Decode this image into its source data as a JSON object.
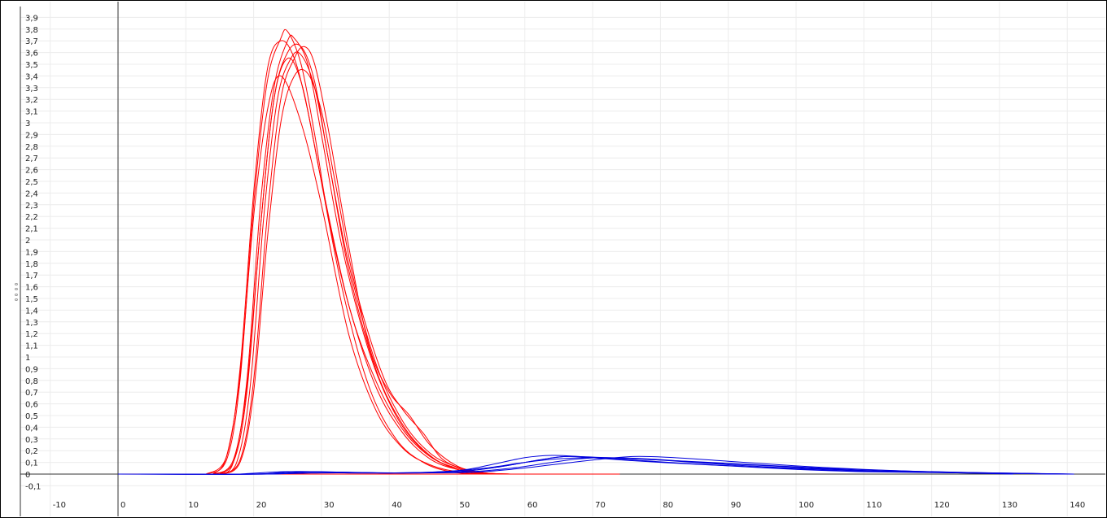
{
  "chart_data": {
    "type": "line",
    "title": "",
    "xlabel": "",
    "ylabel": "",
    "xlim": [
      -15,
      143
    ],
    "ylim": [
      -0.2,
      3.95
    ],
    "grid": true,
    "x_ticks": [
      -10,
      0,
      10,
      20,
      30,
      40,
      50,
      60,
      70,
      80,
      90,
      100,
      110,
      120,
      130,
      140
    ],
    "x_tick_labels": [
      "-10",
      "0",
      "10",
      "20",
      "30",
      "40",
      "50",
      "60",
      "70",
      "80",
      "90",
      "100",
      "110",
      "120",
      "130",
      "140"
    ],
    "y_ticks": [
      -0.1,
      0,
      0.1,
      0.2,
      0.3,
      0.4,
      0.5,
      0.6,
      0.7,
      0.8,
      0.9,
      1,
      1.1,
      1.2,
      1.3,
      1.4,
      1.5,
      1.6,
      1.7,
      1.8,
      1.9,
      2,
      2.1,
      2.2,
      2.3,
      2.4,
      2.5,
      2.6,
      2.7,
      2.8,
      2.9,
      3,
      3.1,
      3.2,
      3.3,
      3.4,
      3.5,
      3.6,
      3.7,
      3.8,
      3.9
    ],
    "y_tick_labels": [
      "-0,1",
      "0",
      "0,1",
      "0,2",
      "0,3",
      "0,4",
      "0,5",
      "0,6",
      "0,7",
      "0,8",
      "0,9",
      "1",
      "1,1",
      "1,2",
      "1,3",
      "1,4",
      "1,5",
      "1,6",
      "1,7",
      "1,8",
      "1,9",
      "2",
      "2,1",
      "2,2",
      "2,3",
      "2,4",
      "2,5",
      "2,6",
      "2,7",
      "2,8",
      "2,9",
      "3",
      "3,1",
      "3,2",
      "3,3",
      "3,4",
      "3,5",
      "3,6",
      "3,7",
      "3,8",
      "3,9"
    ],
    "colors": {
      "red": "#ff0000",
      "blue": "#0000dd",
      "axis": "#333333",
      "grid": "#ececec"
    },
    "series": [
      {
        "color": "red",
        "x": [
          13,
          16,
          18,
          20,
          22,
          24,
          26,
          28,
          30,
          34,
          38,
          42,
          46,
          50,
          54,
          58
        ],
        "y": [
          0,
          0.15,
          0.9,
          2.4,
          3.45,
          3.7,
          3.55,
          3.1,
          2.5,
          1.45,
          0.8,
          0.38,
          0.15,
          0.05,
          0.01,
          0
        ]
      },
      {
        "color": "red",
        "x": [
          13,
          16,
          18,
          20,
          22,
          24,
          25,
          27,
          29,
          31,
          34,
          38,
          42,
          46,
          50,
          54,
          58
        ],
        "y": [
          0,
          0.12,
          0.8,
          2.3,
          3.35,
          3.72,
          3.78,
          3.5,
          2.9,
          2.2,
          1.45,
          0.75,
          0.35,
          0.13,
          0.04,
          0.01,
          0
        ]
      },
      {
        "color": "red",
        "x": [
          14,
          17,
          19,
          21,
          23,
          25,
          26,
          28,
          30,
          33,
          37,
          41,
          45,
          49,
          53,
          57
        ],
        "y": [
          0,
          0.12,
          0.8,
          2.3,
          3.3,
          3.7,
          3.72,
          3.5,
          2.9,
          1.95,
          1.05,
          0.5,
          0.2,
          0.06,
          0.01,
          0
        ]
      },
      {
        "color": "red",
        "x": [
          14,
          17,
          19,
          21,
          23,
          25,
          27,
          29,
          31,
          34,
          38,
          42,
          46,
          50,
          54,
          58
        ],
        "y": [
          0,
          0.1,
          0.7,
          2.1,
          3.2,
          3.6,
          3.65,
          3.35,
          2.7,
          1.8,
          0.95,
          0.45,
          0.18,
          0.06,
          0.01,
          0
        ]
      },
      {
        "color": "red",
        "x": [
          15,
          18,
          20,
          22,
          24,
          26,
          27.5,
          29,
          31,
          34,
          37,
          40,
          43,
          46,
          50,
          54,
          58
        ],
        "y": [
          0,
          0.12,
          0.8,
          2.2,
          3.2,
          3.55,
          3.65,
          3.5,
          2.95,
          1.95,
          1.1,
          0.7,
          0.5,
          0.25,
          0.07,
          0.01,
          0
        ]
      },
      {
        "color": "red",
        "x": [
          15,
          18,
          20,
          22,
          24,
          26,
          28,
          30,
          32,
          35,
          39,
          42,
          45,
          48,
          52,
          56
        ],
        "y": [
          0,
          0.1,
          0.7,
          2.0,
          3.0,
          3.4,
          3.42,
          3.1,
          2.5,
          1.6,
          0.85,
          0.55,
          0.35,
          0.12,
          0.03,
          0
        ]
      },
      {
        "color": "red",
        "x": [
          15,
          17.5,
          19.5,
          21.5,
          23.5,
          25.5,
          27,
          29,
          31,
          34,
          38,
          42,
          46,
          50,
          54
        ],
        "y": [
          0,
          0.1,
          0.75,
          2.2,
          3.2,
          3.55,
          3.58,
          3.3,
          2.7,
          1.75,
          0.9,
          0.42,
          0.16,
          0.04,
          0
        ]
      },
      {
        "color": "red",
        "x": [
          14,
          16,
          18,
          20,
          22,
          24,
          27,
          30,
          34,
          38,
          42,
          46,
          50,
          54
        ],
        "y": [
          0,
          0.15,
          0.85,
          2.2,
          3.1,
          3.4,
          3.0,
          2.3,
          1.2,
          0.55,
          0.22,
          0.08,
          0.02,
          0
        ]
      },
      {
        "color": "red",
        "x": [
          15,
          17,
          19,
          21,
          23,
          25,
          27,
          29,
          33,
          37,
          41,
          45,
          49,
          53
        ],
        "y": [
          0,
          0.1,
          0.75,
          2.1,
          3.2,
          3.55,
          3.35,
          2.8,
          1.6,
          0.75,
          0.3,
          0.1,
          0.02,
          0
        ]
      },
      {
        "color": "red",
        "x": [
          0,
          74
        ],
        "y": [
          0,
          0
        ]
      },
      {
        "color": "blue",
        "x": [
          0,
          20,
          25,
          30,
          40,
          50,
          55,
          60,
          64,
          68,
          72,
          80,
          90,
          100,
          110,
          125,
          140
        ],
        "y": [
          0,
          0,
          0.02,
          0.02,
          0.01,
          0.03,
          0.08,
          0.14,
          0.16,
          0.15,
          0.13,
          0.1,
          0.07,
          0.04,
          0.02,
          0.01,
          0
        ]
      },
      {
        "color": "blue",
        "x": [
          3,
          20,
          26,
          32,
          42,
          50,
          56,
          62,
          66,
          70,
          76,
          84,
          94,
          104,
          114,
          126,
          138
        ],
        "y": [
          0,
          0,
          0.02,
          0.015,
          0.01,
          0.02,
          0.06,
          0.12,
          0.15,
          0.14,
          0.12,
          0.09,
          0.06,
          0.035,
          0.02,
          0.01,
          0
        ]
      },
      {
        "color": "blue",
        "x": [
          5,
          22,
          28,
          34,
          44,
          52,
          58,
          64,
          68,
          72,
          78,
          86,
          96,
          106,
          116,
          128,
          141
        ],
        "y": [
          0,
          0,
          0.015,
          0.015,
          0.01,
          0.02,
          0.05,
          0.1,
          0.13,
          0.14,
          0.13,
          0.1,
          0.07,
          0.04,
          0.02,
          0.01,
          0
        ]
      },
      {
        "color": "blue",
        "x": [
          10,
          22,
          28,
          34,
          44,
          52,
          58,
          64,
          70,
          76,
          82,
          90,
          100,
          110,
          120,
          130,
          141
        ],
        "y": [
          0,
          0,
          0.02,
          0.01,
          0.01,
          0.015,
          0.04,
          0.08,
          0.12,
          0.15,
          0.14,
          0.11,
          0.07,
          0.04,
          0.02,
          0.01,
          0
        ]
      },
      {
        "color": "blue",
        "x": [
          12,
          22,
          30,
          40,
          48,
          54,
          60,
          65,
          70,
          76,
          84,
          94,
          104,
          114,
          124,
          134,
          140
        ],
        "y": [
          0,
          0,
          0.01,
          0.01,
          0.02,
          0.05,
          0.1,
          0.13,
          0.14,
          0.13,
          0.11,
          0.08,
          0.05,
          0.03,
          0.015,
          0.005,
          0
        ]
      },
      {
        "color": "blue",
        "x": [
          18,
          24,
          30,
          40,
          50,
          56,
          62,
          66,
          72,
          80,
          90,
          100,
          110,
          120,
          132
        ],
        "y": [
          0,
          0.02,
          0.02,
          0.01,
          0.02,
          0.06,
          0.12,
          0.15,
          0.14,
          0.12,
          0.08,
          0.05,
          0.03,
          0.015,
          0
        ]
      }
    ]
  }
}
